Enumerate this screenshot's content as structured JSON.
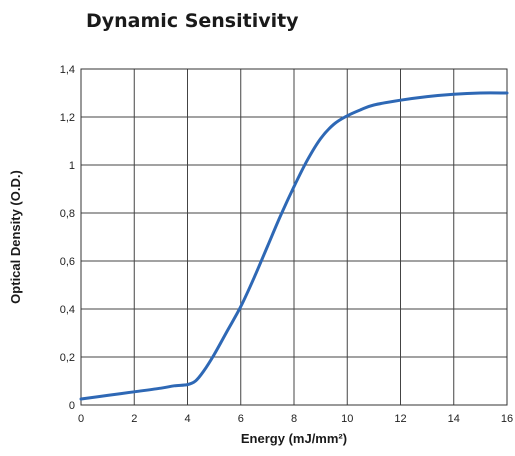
{
  "chart_data": {
    "type": "line",
    "title": "Dynamic Sensitivity",
    "xlabel": "Energy (mJ/mm²)",
    "ylabel": "Optical Density (O.D.)",
    "xlim": [
      0,
      16
    ],
    "ylim": [
      0,
      1.4
    ],
    "x_ticks": [
      0,
      2,
      4,
      6,
      8,
      10,
      12,
      14,
      16
    ],
    "x_tick_labels": [
      "0",
      "2",
      "4",
      "6",
      "8",
      "10",
      "12",
      "14",
      "16"
    ],
    "y_ticks": [
      0,
      0.2,
      0.4,
      0.6,
      0.8,
      1.0,
      1.2,
      1.4
    ],
    "y_tick_labels": [
      "0",
      "0,2",
      "0,4",
      "0,6",
      "0,8",
      "1",
      "1,2",
      "1,4"
    ],
    "grid": true,
    "series_color": "#2e68b5",
    "series": [
      {
        "x": [
          0,
          1,
          2,
          3,
          3.5,
          4,
          4.3,
          4.6,
          5,
          5.5,
          6,
          6.5,
          7,
          7.5,
          8,
          8.5,
          9,
          9.5,
          10,
          10.5,
          11,
          12,
          13,
          14,
          15,
          16
        ],
        "y": [
          0.025,
          0.04,
          0.055,
          0.07,
          0.08,
          0.085,
          0.1,
          0.14,
          0.21,
          0.31,
          0.41,
          0.53,
          0.66,
          0.79,
          0.91,
          1.02,
          1.11,
          1.17,
          1.205,
          1.23,
          1.25,
          1.27,
          1.285,
          1.295,
          1.3,
          1.3
        ]
      }
    ]
  }
}
